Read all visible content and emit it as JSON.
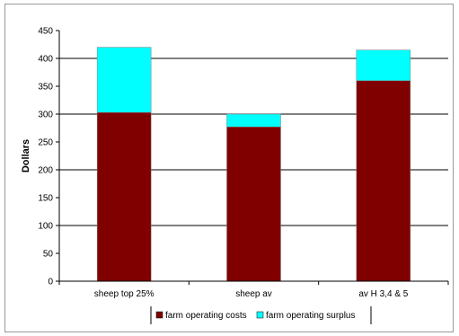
{
  "chart_data": {
    "type": "bar",
    "stacked": true,
    "categories": [
      "sheep top 25%",
      "sheep av",
      "av H 3,4 & 5"
    ],
    "series": [
      {
        "name": "farm operating costs",
        "values": [
          303,
          277,
          360
        ],
        "color": "#800000"
      },
      {
        "name": "farm operating surplus",
        "values": [
          117,
          23,
          55
        ],
        "color": "#00FFFF"
      }
    ],
    "title": "",
    "xlabel": "",
    "ylabel": "Dollars",
    "ylim": [
      0,
      450
    ],
    "yticks": [
      0,
      50,
      100,
      150,
      200,
      250,
      300,
      350,
      400,
      450
    ],
    "gridlines": [
      100,
      200,
      300,
      400
    ],
    "legend_position": "bottom"
  }
}
